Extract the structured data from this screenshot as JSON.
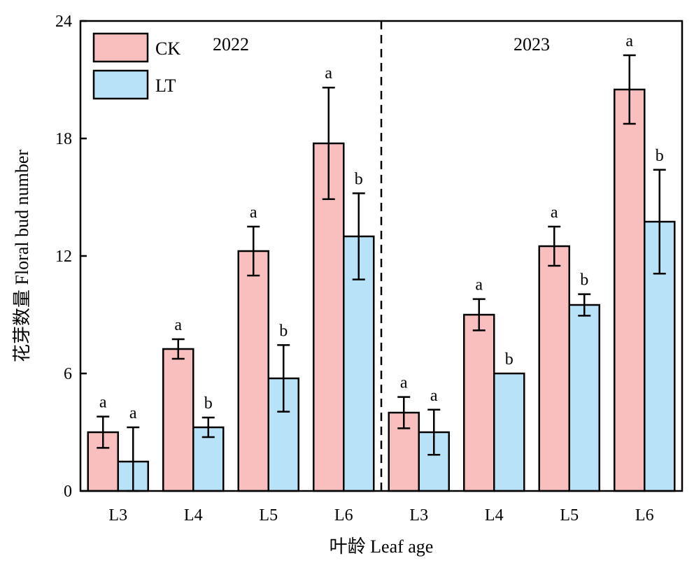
{
  "chart_data": {
    "type": "bar",
    "xlabel": "叶龄 Leaf age",
    "ylabel": "花芽数量 Floral bud number",
    "ylim": [
      0,
      24
    ],
    "yticks": [
      0,
      6,
      12,
      18,
      24
    ],
    "grid": false,
    "legend": "top-left",
    "panel_labels": [
      "2022",
      "2023"
    ],
    "panel_divider": "dashed",
    "categories": [
      "L3",
      "L4",
      "L5",
      "L6",
      "L3",
      "L4",
      "L5",
      "L6"
    ],
    "series": [
      {
        "name": "CK",
        "color": "#F9BFBF",
        "values": [
          3.0,
          7.25,
          12.25,
          17.75,
          4.0,
          9.0,
          12.5,
          20.5
        ],
        "errors": [
          0.8,
          0.5,
          1.25,
          2.85,
          0.8,
          0.8,
          1.0,
          1.75
        ],
        "letters": [
          "a",
          "a",
          "a",
          "a",
          "a",
          "a",
          "a",
          "a"
        ]
      },
      {
        "name": "LT",
        "color": "#B8E2F8",
        "values": [
          1.5,
          3.25,
          5.75,
          13.0,
          3.0,
          6.0,
          9.5,
          13.75
        ],
        "errors": [
          1.75,
          0.5,
          1.7,
          2.2,
          1.15,
          0,
          0.55,
          2.65
        ],
        "letters": [
          "a",
          "b",
          "b",
          "b",
          "a",
          "b",
          "b",
          "b"
        ]
      }
    ]
  }
}
